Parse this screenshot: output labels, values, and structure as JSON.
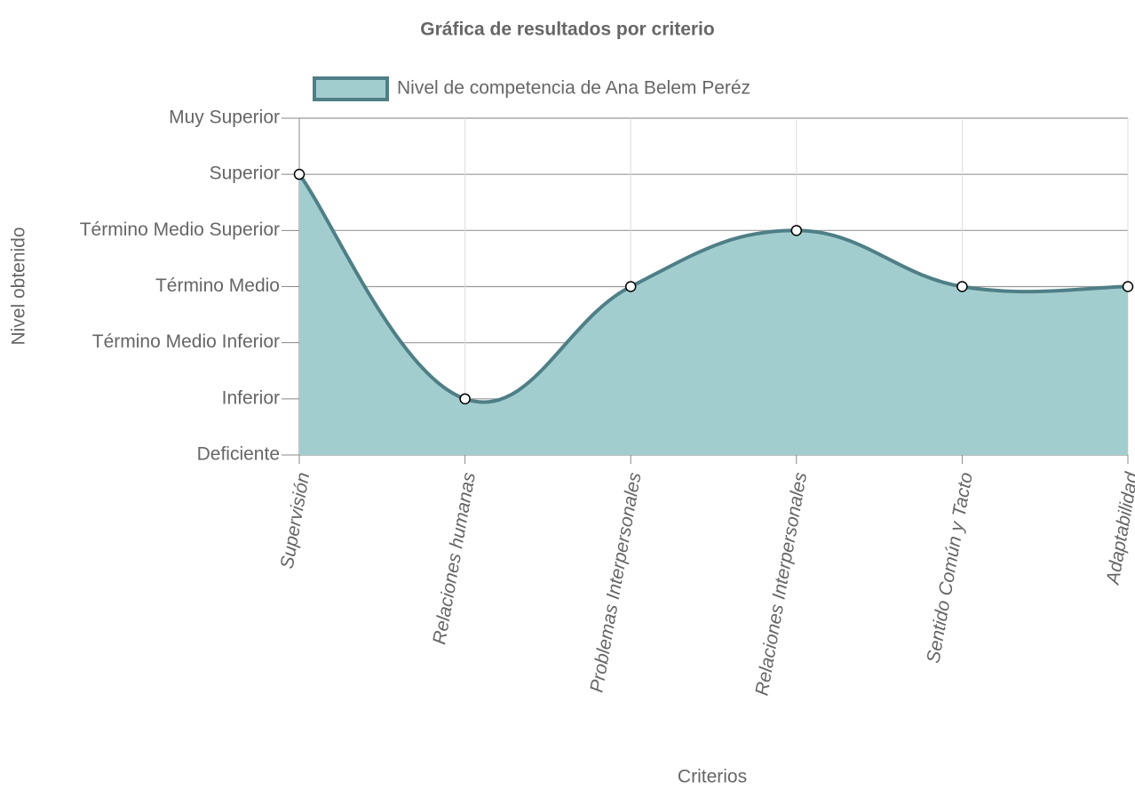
{
  "chart_data": {
    "type": "line",
    "title": "Gráfica de resultados por criterio",
    "x_label": "Criterios",
    "y_label": "Nivel obtenido",
    "categories": [
      "Supervisión",
      "Relaciones humanas",
      "Problemas Interpersonales",
      "Relaciones Interpersonales",
      "Sentido Común y Tacto",
      "Adaptabilidad"
    ],
    "series": [
      {
        "name": "Nivel de competencia de Ana Belem Peréz",
        "color": "#4f7f86",
        "fill_color": "#a2cdcf",
        "values": [
          6,
          2,
          4,
          5,
          4,
          4
        ]
      }
    ],
    "ylim": [
      1,
      7
    ],
    "yticks": [
      {
        "value": 1,
        "label": "Deficiente"
      },
      {
        "value": 2,
        "label": "Inferior"
      },
      {
        "value": 3,
        "label": "Término Medio Inferior"
      },
      {
        "value": 4,
        "label": "Término Medio"
      },
      {
        "value": 5,
        "label": "Término Medio Superior"
      },
      {
        "value": 6,
        "label": "Superior"
      },
      {
        "value": 7,
        "label": "Muy Superior"
      }
    ],
    "grid": true,
    "fill": true,
    "legend": "top"
  }
}
